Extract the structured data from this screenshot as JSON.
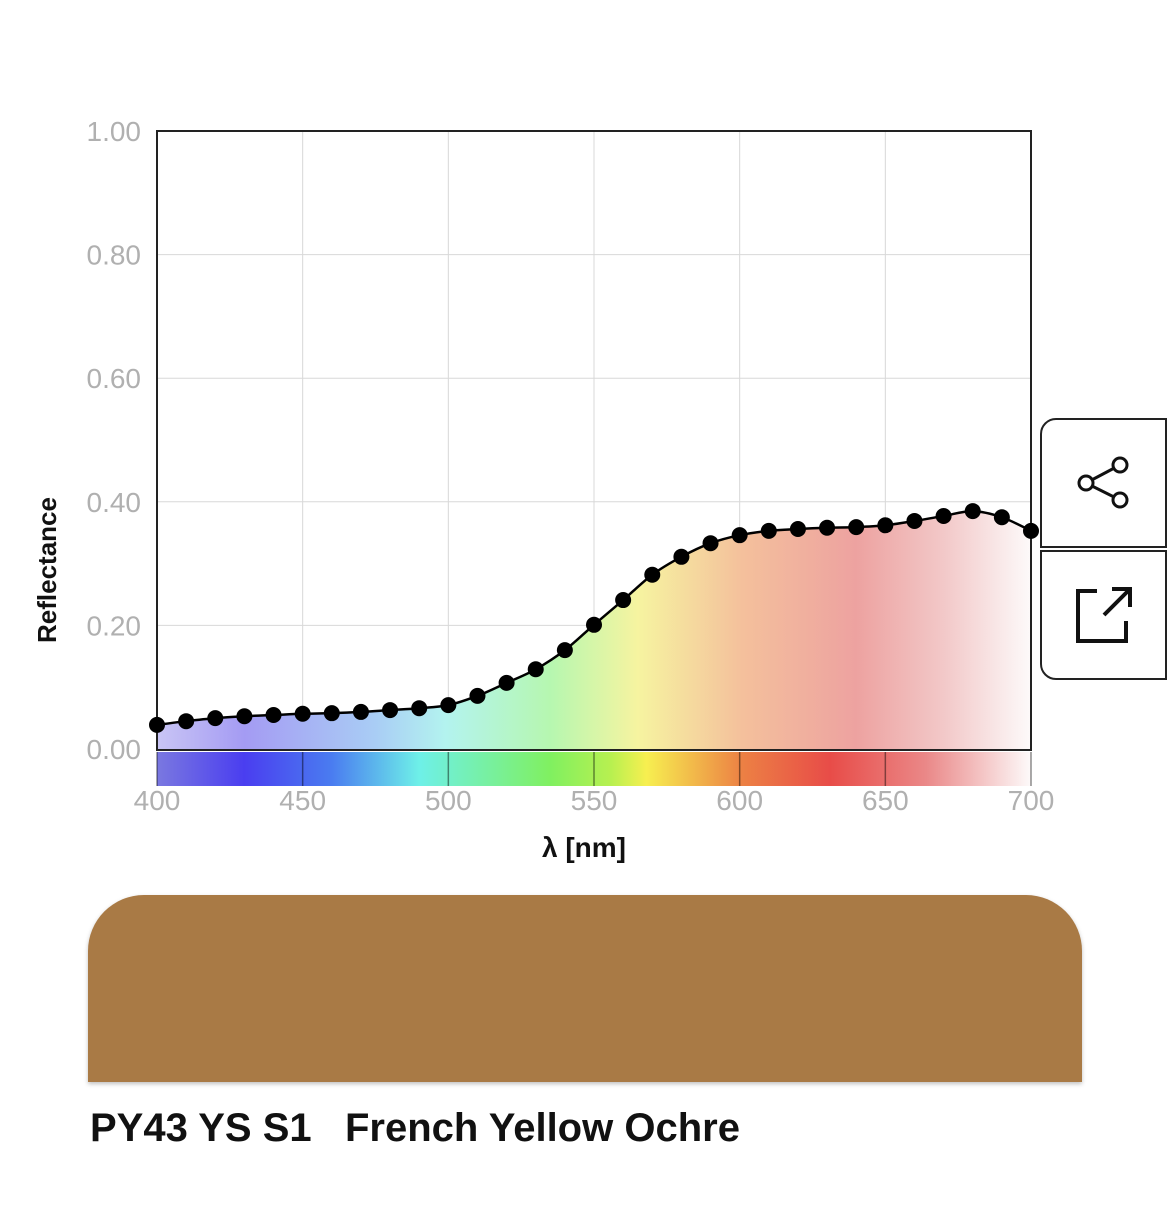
{
  "chart_data": {
    "type": "line",
    "xlabel": "λ [nm]",
    "ylabel": "Reflectance",
    "xlim": [
      400,
      700
    ],
    "ylim": [
      0,
      1
    ],
    "x_ticks": [
      "400",
      "450",
      "500",
      "550",
      "600",
      "650",
      "700"
    ],
    "y_ticks": [
      "0.00",
      "0.20",
      "0.40",
      "0.60",
      "0.80",
      "1.00"
    ],
    "grid": true,
    "markers": true,
    "fill": "spectrum-gradient",
    "x": [
      400,
      410,
      420,
      430,
      440,
      450,
      460,
      470,
      480,
      490,
      500,
      510,
      520,
      530,
      540,
      550,
      560,
      570,
      580,
      590,
      600,
      610,
      620,
      630,
      640,
      650,
      660,
      670,
      680,
      690,
      700
    ],
    "values": [
      0.039,
      0.045,
      0.05,
      0.053,
      0.055,
      0.057,
      0.058,
      0.06,
      0.063,
      0.066,
      0.071,
      0.086,
      0.107,
      0.129,
      0.16,
      0.201,
      0.241,
      0.282,
      0.311,
      0.333,
      0.346,
      0.353,
      0.356,
      0.358,
      0.359,
      0.362,
      0.369,
      0.377,
      0.385,
      0.375,
      0.353
    ]
  },
  "actions": {
    "share_icon": "share-icon",
    "open_icon": "external-link-icon"
  },
  "swatch": {
    "color": "#A97A45",
    "code": "PY43 YS S1",
    "name": "French Yellow Ochre"
  }
}
